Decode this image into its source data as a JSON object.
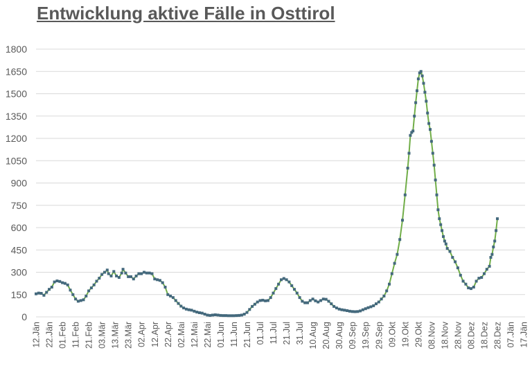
{
  "chart_data": {
    "type": "line",
    "title": "Entwicklung aktive Fälle in Osttirol",
    "xlabel": "",
    "ylabel": "",
    "ylim": [
      0,
      1800
    ],
    "yticks": [
      "0",
      "150",
      "300",
      "450",
      "600",
      "750",
      "900",
      "1050",
      "1200",
      "1350",
      "1500",
      "1650",
      "1800"
    ],
    "grid": true,
    "legend": "none",
    "colors": {
      "line": "#70ad47",
      "marker": "#44697d",
      "grid": "#d9d9d9",
      "text": "#595959"
    },
    "categories": [
      "12.Jän",
      "22.Jän",
      "01.Feb",
      "11.Feb",
      "21.Feb",
      "03.Mär",
      "13.Mär",
      "23.Mär",
      "02.Apr",
      "12.Apr",
      "22.Apr",
      "02.Mai",
      "12.Mai",
      "22.Mai",
      "01.Jun",
      "11.Jun",
      "21.Jun",
      "01.Jul",
      "11.Jul",
      "21.Jul",
      "31.Jul",
      "10.Aug",
      "20.Aug",
      "30.Aug",
      "09.Sep",
      "19.Sep",
      "29.Sep",
      "09.Okt",
      "19.Okt",
      "29.Okt",
      "08.Nov",
      "18.Nov",
      "28.Nov",
      "08.Dez",
      "18.Dez",
      "28.Dez",
      "07.Jän",
      "17.Jän"
    ],
    "series": [
      {
        "points": [
          [
            0,
            155
          ],
          [
            2,
            160
          ],
          [
            4,
            158
          ],
          [
            6,
            145
          ],
          [
            8,
            165
          ],
          [
            10,
            185
          ],
          [
            12,
            200
          ],
          [
            14,
            235
          ],
          [
            16,
            242
          ],
          [
            18,
            238
          ],
          [
            20,
            230
          ],
          [
            22,
            225
          ],
          [
            24,
            215
          ],
          [
            26,
            180
          ],
          [
            28,
            150
          ],
          [
            30,
            120
          ],
          [
            32,
            105
          ],
          [
            34,
            110
          ],
          [
            36,
            115
          ],
          [
            38,
            140
          ],
          [
            40,
            175
          ],
          [
            42,
            195
          ],
          [
            44,
            215
          ],
          [
            46,
            240
          ],
          [
            48,
            260
          ],
          [
            50,
            285
          ],
          [
            52,
            300
          ],
          [
            54,
            315
          ],
          [
            55,
            290
          ],
          [
            57,
            275
          ],
          [
            59,
            305
          ],
          [
            61,
            275
          ],
          [
            63,
            265
          ],
          [
            65,
            295
          ],
          [
            66,
            320
          ],
          [
            68,
            295
          ],
          [
            70,
            270
          ],
          [
            72,
            270
          ],
          [
            74,
            255
          ],
          [
            76,
            275
          ],
          [
            78,
            290
          ],
          [
            80,
            290
          ],
          [
            82,
            300
          ],
          [
            84,
            295
          ],
          [
            86,
            295
          ],
          [
            88,
            290
          ],
          [
            90,
            255
          ],
          [
            92,
            250
          ],
          [
            94,
            245
          ],
          [
            96,
            230
          ],
          [
            98,
            200
          ],
          [
            100,
            150
          ],
          [
            102,
            140
          ],
          [
            104,
            130
          ],
          [
            106,
            110
          ],
          [
            108,
            90
          ],
          [
            110,
            72
          ],
          [
            112,
            60
          ],
          [
            114,
            52
          ],
          [
            116,
            48
          ],
          [
            118,
            45
          ],
          [
            120,
            38
          ],
          [
            122,
            32
          ],
          [
            124,
            28
          ],
          [
            126,
            25
          ],
          [
            128,
            18
          ],
          [
            130,
            12
          ],
          [
            132,
            10
          ],
          [
            134,
            12
          ],
          [
            136,
            14
          ],
          [
            138,
            12
          ],
          [
            140,
            10
          ],
          [
            142,
            9
          ],
          [
            144,
            9
          ],
          [
            146,
            8
          ],
          [
            148,
            8
          ],
          [
            150,
            8
          ],
          [
            152,
            9
          ],
          [
            154,
            10
          ],
          [
            156,
            12
          ],
          [
            158,
            18
          ],
          [
            160,
            30
          ],
          [
            162,
            50
          ],
          [
            164,
            70
          ],
          [
            166,
            85
          ],
          [
            168,
            100
          ],
          [
            170,
            110
          ],
          [
            172,
            112
          ],
          [
            174,
            108
          ],
          [
            176,
            110
          ],
          [
            178,
            130
          ],
          [
            180,
            160
          ],
          [
            182,
            190
          ],
          [
            184,
            220
          ],
          [
            186,
            250
          ],
          [
            188,
            258
          ],
          [
            190,
            250
          ],
          [
            192,
            235
          ],
          [
            194,
            210
          ],
          [
            196,
            185
          ],
          [
            198,
            160
          ],
          [
            200,
            130
          ],
          [
            202,
            105
          ],
          [
            204,
            95
          ],
          [
            206,
            95
          ],
          [
            208,
            110
          ],
          [
            210,
            120
          ],
          [
            212,
            108
          ],
          [
            214,
            100
          ],
          [
            216,
            110
          ],
          [
            218,
            120
          ],
          [
            220,
            118
          ],
          [
            222,
            105
          ],
          [
            224,
            88
          ],
          [
            226,
            70
          ],
          [
            228,
            60
          ],
          [
            230,
            52
          ],
          [
            232,
            48
          ],
          [
            234,
            45
          ],
          [
            236,
            42
          ],
          [
            238,
            38
          ],
          [
            240,
            36
          ],
          [
            242,
            35
          ],
          [
            244,
            36
          ],
          [
            246,
            40
          ],
          [
            248,
            48
          ],
          [
            250,
            55
          ],
          [
            252,
            62
          ],
          [
            254,
            68
          ],
          [
            256,
            75
          ],
          [
            258,
            88
          ],
          [
            260,
            100
          ],
          [
            262,
            120
          ],
          [
            264,
            140
          ],
          [
            266,
            175
          ],
          [
            268,
            220
          ],
          [
            270,
            290
          ],
          [
            272,
            360
          ],
          [
            274,
            420
          ],
          [
            276,
            520
          ],
          [
            278,
            650
          ],
          [
            280,
            820
          ],
          [
            282,
            1000
          ],
          [
            283,
            1100
          ],
          [
            284,
            1220
          ],
          [
            285,
            1240
          ],
          [
            286,
            1250
          ],
          [
            287,
            1350
          ],
          [
            288,
            1440
          ],
          [
            289,
            1520
          ],
          [
            290,
            1600
          ],
          [
            291,
            1640
          ],
          [
            292,
            1650
          ],
          [
            293,
            1620
          ],
          [
            294,
            1570
          ],
          [
            295,
            1510
          ],
          [
            296,
            1450
          ],
          [
            297,
            1370
          ],
          [
            298,
            1300
          ],
          [
            299,
            1260
          ],
          [
            300,
            1180
          ],
          [
            301,
            1100
          ],
          [
            302,
            1020
          ],
          [
            303,
            920
          ],
          [
            304,
            820
          ],
          [
            305,
            720
          ],
          [
            306,
            660
          ],
          [
            307,
            620
          ],
          [
            308,
            580
          ],
          [
            309,
            540
          ],
          [
            310,
            510
          ],
          [
            311,
            490
          ],
          [
            312,
            460
          ],
          [
            314,
            440
          ],
          [
            316,
            400
          ],
          [
            318,
            370
          ],
          [
            320,
            330
          ],
          [
            322,
            280
          ],
          [
            324,
            240
          ],
          [
            326,
            220
          ],
          [
            328,
            195
          ],
          [
            330,
            190
          ],
          [
            332,
            200
          ],
          [
            334,
            240
          ],
          [
            336,
            260
          ],
          [
            338,
            265
          ],
          [
            340,
            290
          ],
          [
            342,
            320
          ],
          [
            344,
            340
          ],
          [
            345,
            400
          ],
          [
            346,
            420
          ],
          [
            347,
            470
          ],
          [
            348,
            510
          ],
          [
            349,
            580
          ],
          [
            350,
            660
          ]
        ]
      }
    ]
  }
}
